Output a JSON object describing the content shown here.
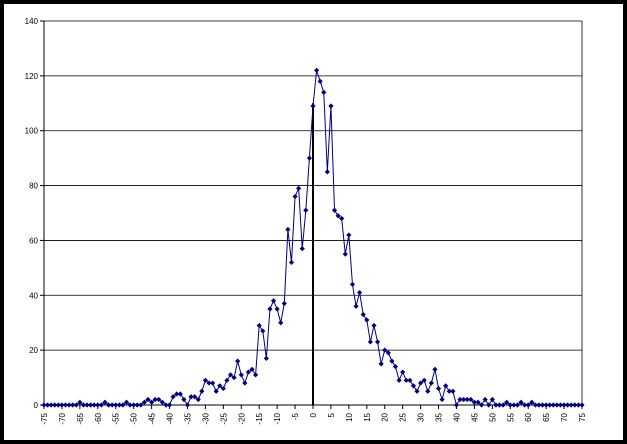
{
  "chart_data": {
    "type": "line",
    "title": "",
    "xlabel": "",
    "ylabel": "",
    "xlim": [
      -75,
      75
    ],
    "ylim": [
      0,
      140
    ],
    "y_ticks": [
      0,
      20,
      40,
      60,
      80,
      100,
      120,
      140
    ],
    "x_ticks": [
      -75,
      -70,
      -65,
      -60,
      -55,
      -50,
      -45,
      -40,
      -35,
      -30,
      -25,
      -20,
      -15,
      -10,
      -5,
      0,
      5,
      10,
      15,
      20,
      25,
      30,
      35,
      40,
      45,
      50,
      55,
      60,
      65,
      70,
      75
    ],
    "grid": "horizontal",
    "legend": "none",
    "series_color": "#000080",
    "marker": "diamond",
    "reference_line": {
      "x": 0,
      "y_top": 110,
      "color": "#000000"
    },
    "series": [
      {
        "x": [
          -75,
          -74,
          -73,
          -72,
          -71,
          -70,
          -69,
          -68,
          -67,
          -66,
          -65,
          -64,
          -63,
          -62,
          -61,
          -60,
          -59,
          -58,
          -57,
          -56,
          -55,
          -54,
          -53,
          -52,
          -51,
          -50,
          -49,
          -48,
          -47,
          -46,
          -45,
          -44,
          -43,
          -42,
          -41,
          -40,
          -39,
          -38,
          -37,
          -36,
          -35,
          -34,
          -33,
          -32,
          -31,
          -30,
          -29,
          -28,
          -27,
          -26,
          -25,
          -24,
          -23,
          -22,
          -21,
          -20,
          -19,
          -18,
          -17,
          -16,
          -15,
          -14,
          -13,
          -12,
          -11,
          -10,
          -9,
          -8,
          -7,
          -6,
          -5,
          -4,
          -3,
          -2,
          -1,
          0,
          1,
          2,
          3,
          4,
          5,
          6,
          7,
          8,
          9,
          10,
          11,
          12,
          13,
          14,
          15,
          16,
          17,
          18,
          19,
          20,
          21,
          22,
          23,
          24,
          25,
          26,
          27,
          28,
          29,
          30,
          31,
          32,
          33,
          34,
          35,
          36,
          37,
          38,
          39,
          40,
          41,
          42,
          43,
          44,
          45,
          46,
          47,
          48,
          49,
          50,
          51,
          52,
          53,
          54,
          55,
          56,
          57,
          58,
          59,
          60,
          61,
          62,
          63,
          64,
          65,
          66,
          67,
          68,
          69,
          70,
          71,
          72,
          73,
          74,
          75
        ],
        "values": [
          0,
          0,
          0,
          0,
          0,
          0,
          0,
          0,
          0,
          0,
          1,
          0,
          0,
          0,
          0,
          0,
          0,
          1,
          0,
          0,
          0,
          0,
          0,
          1,
          0,
          0,
          0,
          0,
          1,
          2,
          1,
          2,
          2,
          1,
          0,
          0,
          3,
          4,
          4,
          2,
          0,
          3,
          3,
          2,
          5,
          9,
          8,
          8,
          5,
          7,
          6,
          9,
          11,
          10,
          16,
          11,
          8,
          12,
          13,
          11,
          29,
          27,
          17,
          35,
          38,
          35,
          30,
          37,
          64,
          52,
          76,
          79,
          57,
          71,
          90,
          109,
          122,
          118,
          114,
          85,
          109,
          71,
          69,
          68,
          55,
          62,
          44,
          36,
          41,
          33,
          31,
          23,
          29,
          23,
          15,
          20,
          19,
          16,
          14,
          9,
          12,
          9,
          9,
          7,
          5,
          8,
          9,
          5,
          8,
          13,
          6,
          2,
          7,
          5,
          5,
          0,
          2,
          2,
          2,
          2,
          1,
          1,
          0,
          2,
          0,
          2,
          0,
          0,
          0,
          1,
          0,
          0,
          0,
          1,
          0,
          0,
          1,
          0,
          0,
          0,
          0,
          0,
          0,
          0,
          0,
          0,
          0,
          0,
          0,
          0,
          0
        ]
      }
    ]
  }
}
